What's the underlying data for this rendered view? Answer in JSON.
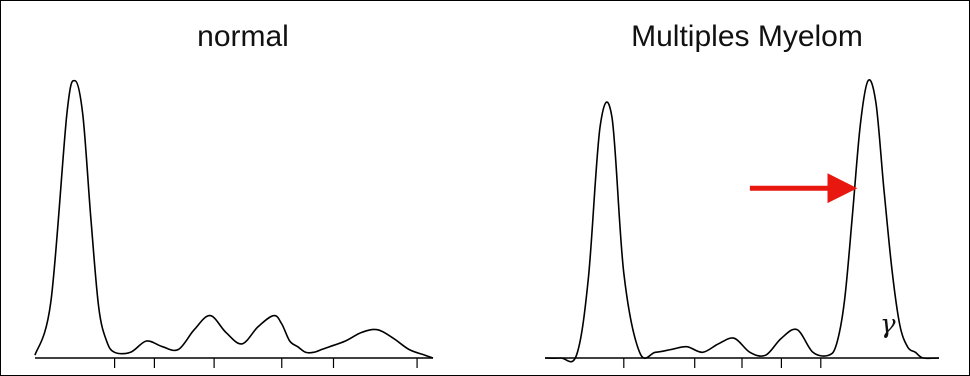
{
  "chart_data": [
    {
      "type": "line",
      "title": "normal",
      "x": [
        0,
        4,
        8,
        10,
        12,
        14,
        16,
        18,
        20,
        24,
        28,
        32,
        36,
        40,
        44,
        48,
        52,
        56,
        60,
        62,
        64,
        66,
        68,
        70,
        72,
        74,
        78,
        82,
        86,
        90,
        94,
        98,
        100
      ],
      "y": [
        0.01,
        0.2,
        0.86,
        0.98,
        0.86,
        0.5,
        0.18,
        0.06,
        0.02,
        0.02,
        0.06,
        0.04,
        0.03,
        0.1,
        0.15,
        0.09,
        0.05,
        0.11,
        0.15,
        0.12,
        0.06,
        0.04,
        0.02,
        0.02,
        0.03,
        0.04,
        0.06,
        0.09,
        0.1,
        0.07,
        0.03,
        0.01,
        0.0
      ],
      "xlim": [
        0,
        100
      ],
      "ylim": [
        0,
        1
      ],
      "xticks": [
        20,
        30,
        45,
        62,
        75,
        96
      ],
      "line_color": "#000000",
      "grid": false,
      "axis_labels": "none"
    },
    {
      "type": "line",
      "title": "Multiples Myelom",
      "x": [
        0,
        4,
        8,
        11,
        14,
        17,
        20,
        24,
        28,
        32,
        36,
        40,
        44,
        48,
        52,
        56,
        60,
        64,
        68,
        72,
        74,
        76,
        78,
        80,
        82,
        84,
        86,
        88,
        90,
        92,
        94,
        96,
        100
      ],
      "y": [
        0.0,
        0.0,
        0.01,
        0.28,
        0.82,
        0.85,
        0.3,
        0.02,
        0.02,
        0.03,
        0.04,
        0.02,
        0.05,
        0.07,
        0.02,
        0.01,
        0.07,
        0.1,
        0.02,
        0.01,
        0.05,
        0.2,
        0.5,
        0.82,
        0.98,
        0.9,
        0.6,
        0.32,
        0.12,
        0.04,
        0.02,
        0.0,
        0.0
      ],
      "xlim": [
        0,
        100
      ],
      "ylim": [
        0,
        1
      ],
      "xticks": [
        20,
        38,
        50,
        60,
        70
      ],
      "line_color": "#000000",
      "grid": false,
      "axis_labels": "none",
      "annotations": [
        {
          "kind": "arrow",
          "color": "#e8170f",
          "from": [
            52,
            0.6
          ],
          "to": [
            78,
            0.6
          ],
          "label": ""
        },
        {
          "kind": "text",
          "label": "γ",
          "at": [
            87,
            0.09
          ]
        }
      ]
    }
  ]
}
